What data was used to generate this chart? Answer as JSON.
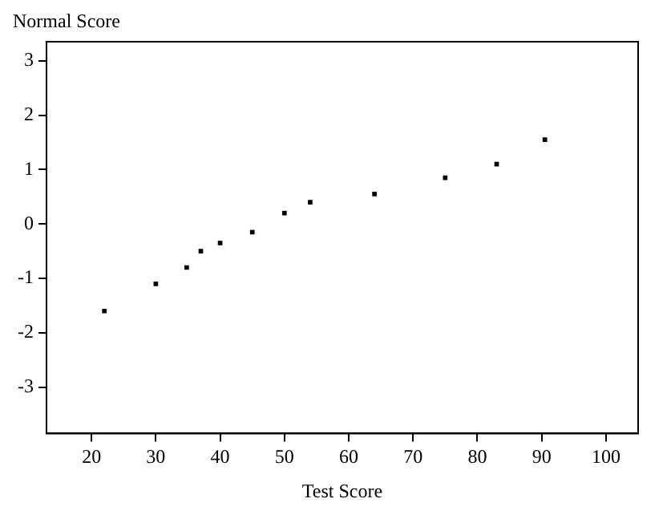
{
  "chart_data": {
    "type": "scatter",
    "xlabel": "Test Score",
    "ylabel": "Normal Score",
    "x": [
      22,
      30,
      34.8,
      37,
      40,
      45,
      50,
      54,
      64,
      75,
      83,
      90.5
    ],
    "series": [
      {
        "color": "#000000",
        "values": [
          -1.6,
          -1.1,
          -0.8,
          -0.5,
          -0.35,
          -0.15,
          0.2,
          0.4,
          0.55,
          0.85,
          1.1,
          1.55
        ]
      }
    ],
    "xlim": [
      13,
      105
    ],
    "xticks": [
      20,
      30,
      40,
      50,
      60,
      70,
      80,
      90,
      100
    ],
    "ylim": [
      -3.85,
      3.35
    ],
    "yticks": [
      -3,
      -2,
      -1,
      0,
      1,
      2,
      3
    ],
    "grid": false,
    "legend": false,
    "marker": "square"
  }
}
